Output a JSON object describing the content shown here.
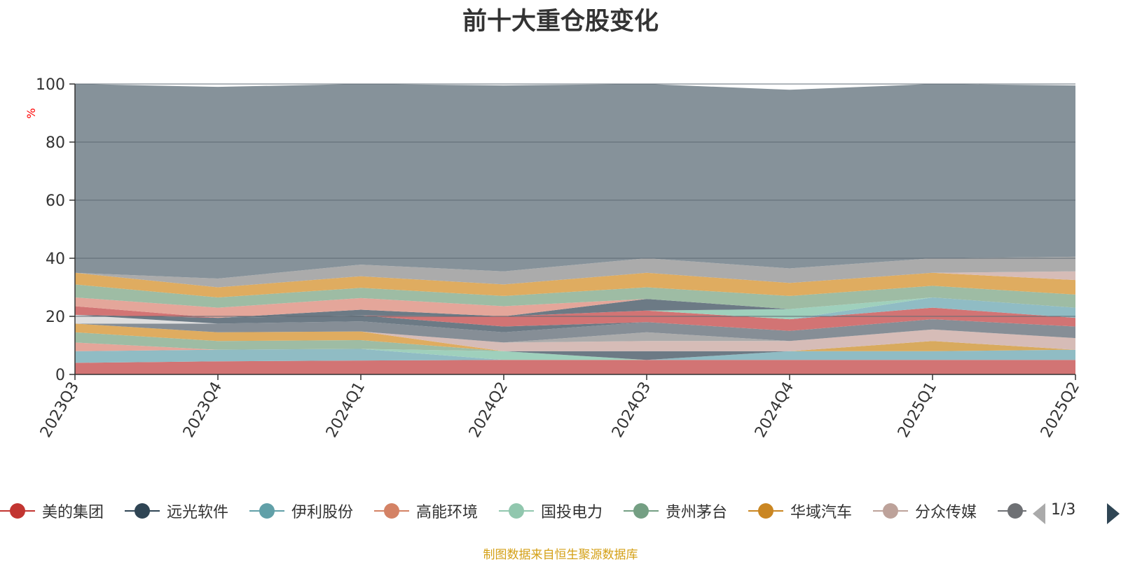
{
  "chart_data": {
    "type": "area",
    "title": "前十大重仓股变化",
    "ylabel": "%",
    "xlabel": "",
    "ylim": [
      0,
      100
    ],
    "y_ticks": [
      0,
      20,
      40,
      60,
      80,
      100
    ],
    "stacked": true,
    "categories": [
      "2023Q3",
      "2023Q4",
      "2024Q1",
      "2024Q2",
      "2024Q3",
      "2024Q4",
      "2025Q1",
      "2025Q2"
    ],
    "series": [
      {
        "color": "#d27474",
        "values": [
          4,
          4.5,
          4.8,
          5,
          5,
          5,
          5,
          5
        ]
      },
      {
        "color": "#90bcc4",
        "values": [
          4,
          4,
          4,
          0,
          0,
          3,
          3,
          3.5
        ]
      },
      {
        "color": "#9fd0bc",
        "values": [
          0,
          0,
          0,
          3,
          0,
          0,
          0,
          0
        ]
      },
      {
        "color": "#6c7a85",
        "values": [
          0,
          0,
          0,
          0,
          3,
          0,
          0,
          0
        ]
      },
      {
        "color": "#e4a69a",
        "values": [
          3,
          0,
          0,
          0,
          0,
          0,
          0,
          0
        ]
      },
      {
        "color": "#d8aa5e",
        "values": [
          0,
          0,
          0,
          0,
          0,
          0,
          3.5,
          0
        ]
      },
      {
        "color": "#9ebca4",
        "values": [
          3.5,
          3,
          3,
          0,
          0,
          0,
          0,
          0
        ]
      },
      {
        "color": "#dfac60",
        "values": [
          3,
          3,
          3,
          0,
          0,
          0,
          0,
          0
        ]
      },
      {
        "color": "#d6bcb7",
        "values": [
          0,
          0,
          0,
          3,
          3.5,
          3.5,
          4,
          4
        ]
      },
      {
        "color": "#ababab",
        "values": [
          0,
          0,
          0,
          0,
          3,
          0,
          0,
          0
        ]
      },
      {
        "color": "#868e96",
        "values": [
          0,
          3,
          3.5,
          3.5,
          3.5,
          3.5,
          3.5,
          4
        ]
      },
      {
        "color": "#dedede",
        "values": [
          3,
          0,
          0,
          0,
          0,
          0,
          0,
          0
        ]
      },
      {
        "color": "#6c7a85",
        "values": [
          0,
          2,
          2,
          2,
          0,
          0,
          0,
          0
        ]
      },
      {
        "color": "#d27474",
        "values": [
          3,
          0,
          0,
          3.5,
          4,
          4,
          4,
          3
        ]
      },
      {
        "color": "#90bcc4",
        "values": [
          0,
          0,
          0,
          0,
          0,
          0,
          3.5,
          3.5
        ]
      },
      {
        "color": "#9fd0bc",
        "values": [
          0,
          0,
          0,
          0,
          0,
          3.5,
          0,
          0
        ]
      },
      {
        "color": "#6c7a85",
        "values": [
          0,
          0,
          2,
          0,
          4,
          0,
          0,
          0
        ]
      },
      {
        "color": "#e4a69a",
        "values": [
          3,
          3.5,
          4,
          3.5,
          0,
          0,
          0,
          0
        ]
      },
      {
        "color": "#9ebca4",
        "values": [
          4.5,
          3.5,
          3.5,
          3.5,
          4,
          4.5,
          4,
          4.5
        ]
      },
      {
        "color": "#dfac60",
        "values": [
          4,
          3.5,
          4,
          4,
          5,
          4.5,
          4.5,
          5
        ]
      },
      {
        "color": "#d6bcb7",
        "values": [
          0,
          0,
          0,
          0,
          0,
          0,
          0,
          3
        ]
      },
      {
        "color": "#ababab",
        "values": [
          0,
          3,
          4,
          4.5,
          5,
          5,
          5,
          5
        ]
      },
      {
        "color": "#86929a",
        "values": [
          66,
          66,
          62.7,
          64,
          61,
          61.5,
          61,
          59
        ]
      }
    ]
  },
  "legend": {
    "items": [
      {
        "label": "美的集团",
        "color": "#c23531"
      },
      {
        "label": "远光软件",
        "color": "#2f4554"
      },
      {
        "label": "伊利股份",
        "color": "#61a0a8"
      },
      {
        "label": "高能环境",
        "color": "#d48265"
      },
      {
        "label": "国投电力",
        "color": "#91c7ae"
      },
      {
        "label": "贵州茅台",
        "color": "#749f83"
      },
      {
        "label": "华域汽车",
        "color": "#ca8622"
      },
      {
        "label": "分众传媒",
        "color": "#bda29a"
      },
      {
        "label": "",
        "color": "#6e7074"
      }
    ],
    "page": "1/3"
  },
  "source_note": "制图数据来自恒生聚源数据库"
}
